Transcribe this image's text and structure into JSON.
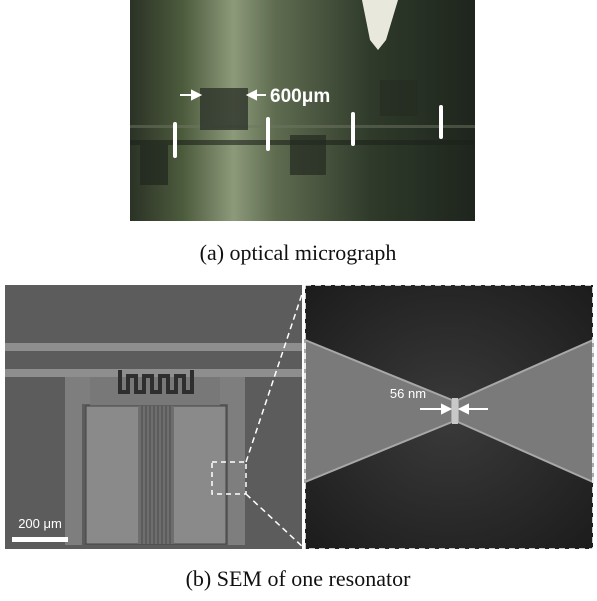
{
  "figure_a": {
    "annotation": "600μm",
    "caption": "(a) optical micrograph"
  },
  "figure_b": {
    "scale_bar": "200 μm",
    "gap_annotation": "56 nm",
    "caption": "(b) SEM of one resonator"
  }
}
